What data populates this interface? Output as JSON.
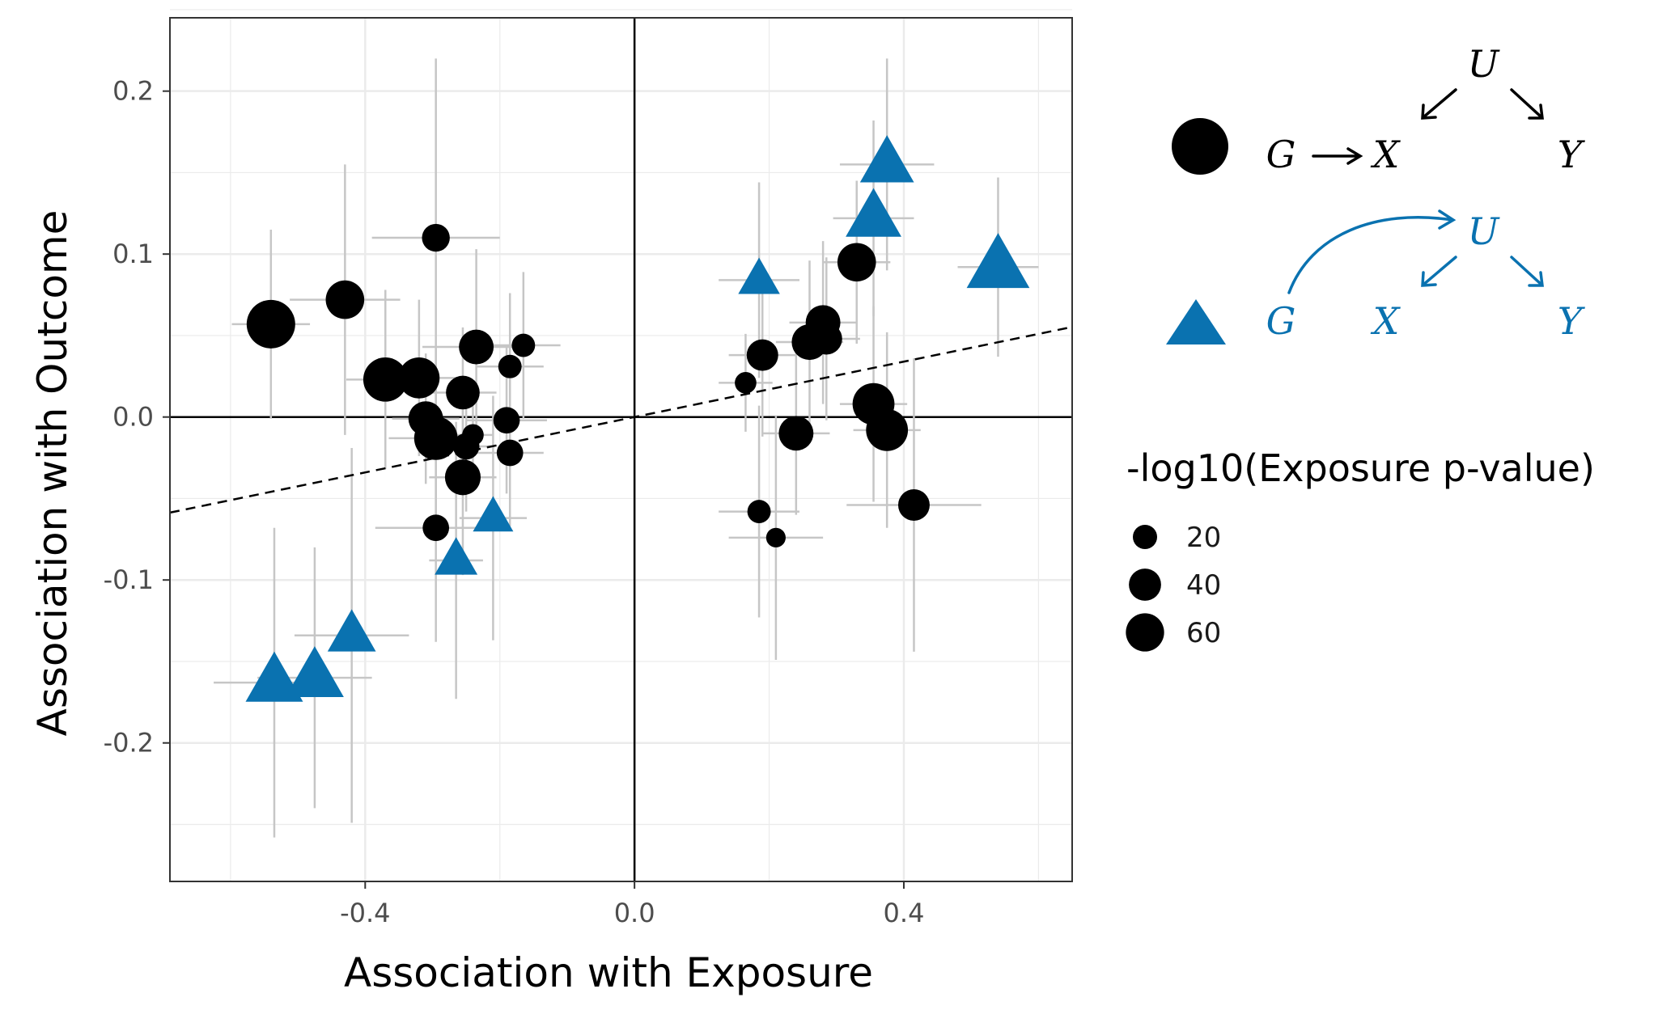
{
  "chart_data": {
    "type": "scatter",
    "title": "",
    "xlabel": "Association with Exposure",
    "ylabel": "Association with Outcome",
    "xlim": [
      -0.69,
      0.65
    ],
    "ylim": [
      -0.285,
      0.245
    ],
    "xticks": [
      -0.4,
      0.0,
      0.4
    ],
    "xtick_labels": [
      "-0.4",
      "0.0",
      "0.4"
    ],
    "yticks": [
      -0.2,
      -0.1,
      0.0,
      0.1,
      0.2
    ],
    "ytick_labels": [
      "-0.2",
      "-0.1",
      "0.0",
      "0.1",
      "0.2"
    ],
    "grid": true,
    "reference_line": {
      "style": "dashed",
      "intercept": 0.0,
      "slope": 0.085
    },
    "colors": {
      "circle": "#000000",
      "triangle": "#0a72b0",
      "errorbar": "#c6c6c6"
    },
    "size_legend": {
      "title": "-log10(Exposure p-value)",
      "labels": [
        "20",
        "40",
        "60"
      ],
      "values": [
        20,
        40,
        60
      ],
      "placement": "right"
    },
    "series": [
      {
        "marker": "circle",
        "points": [
          {
            "x": -0.54,
            "y": 0.057,
            "xerr": 0.058,
            "yerr": 0.058,
            "p": 62
          },
          {
            "x": -0.43,
            "y": 0.072,
            "xerr": 0.082,
            "yerr": 0.083,
            "p": 36
          },
          {
            "x": -0.37,
            "y": 0.023,
            "xerr": 0.058,
            "yerr": 0.055,
            "p": 50
          },
          {
            "x": -0.32,
            "y": 0.024,
            "xerr": 0.07,
            "yerr": 0.048,
            "p": 42
          },
          {
            "x": -0.31,
            "y": -0.001,
            "xerr": 0.05,
            "yerr": 0.04,
            "p": 28
          },
          {
            "x": -0.295,
            "y": -0.013,
            "xerr": 0.07,
            "yerr": 0.055,
            "p": 48
          },
          {
            "x": -0.295,
            "y": 0.11,
            "xerr": 0.095,
            "yerr": 0.11,
            "p": 16
          },
          {
            "x": -0.235,
            "y": 0.043,
            "xerr": 0.08,
            "yerr": 0.06,
            "p": 28
          },
          {
            "x": -0.255,
            "y": 0.015,
            "xerr": 0.05,
            "yerr": 0.04,
            "p": 26
          },
          {
            "x": -0.25,
            "y": -0.018,
            "xerr": 0.04,
            "yerr": 0.04,
            "p": 14
          },
          {
            "x": -0.24,
            "y": -0.011,
            "xerr": 0.03,
            "yerr": 0.03,
            "p": 8
          },
          {
            "x": -0.255,
            "y": -0.037,
            "xerr": 0.05,
            "yerr": 0.06,
            "p": 30
          },
          {
            "x": -0.19,
            "y": -0.002,
            "xerr": 0.06,
            "yerr": 0.045,
            "p": 14
          },
          {
            "x": -0.185,
            "y": 0.031,
            "xerr": 0.05,
            "yerr": 0.045,
            "p": 10
          },
          {
            "x": -0.185,
            "y": -0.022,
            "xerr": 0.05,
            "yerr": 0.045,
            "p": 14
          },
          {
            "x": -0.165,
            "y": 0.044,
            "xerr": 0.055,
            "yerr": 0.045,
            "p": 10
          },
          {
            "x": -0.295,
            "y": -0.068,
            "xerr": 0.09,
            "yerr": 0.07,
            "p": 14
          },
          {
            "x": 0.165,
            "y": 0.021,
            "xerr": 0.04,
            "yerr": 0.03,
            "p": 8
          },
          {
            "x": 0.19,
            "y": 0.038,
            "xerr": 0.05,
            "yerr": 0.05,
            "p": 22
          },
          {
            "x": 0.26,
            "y": 0.046,
            "xerr": 0.05,
            "yerr": 0.05,
            "p": 30
          },
          {
            "x": 0.28,
            "y": 0.058,
            "xerr": 0.05,
            "yerr": 0.05,
            "p": 28
          },
          {
            "x": 0.285,
            "y": 0.048,
            "xerr": 0.05,
            "yerr": 0.05,
            "p": 22
          },
          {
            "x": 0.33,
            "y": 0.095,
            "xerr": 0.05,
            "yerr": 0.05,
            "p": 36
          },
          {
            "x": 0.24,
            "y": -0.01,
            "xerr": 0.05,
            "yerr": 0.05,
            "p": 28
          },
          {
            "x": 0.355,
            "y": 0.008,
            "xerr": 0.05,
            "yerr": 0.06,
            "p": 44
          },
          {
            "x": 0.375,
            "y": -0.008,
            "xerr": 0.05,
            "yerr": 0.06,
            "p": 44
          },
          {
            "x": 0.185,
            "y": -0.058,
            "xerr": 0.06,
            "yerr": 0.065,
            "p": 10
          },
          {
            "x": 0.21,
            "y": -0.074,
            "xerr": 0.07,
            "yerr": 0.075,
            "p": 6
          },
          {
            "x": 0.415,
            "y": -0.054,
            "xerr": 0.1,
            "yerr": 0.09,
            "p": 22
          }
        ]
      },
      {
        "marker": "triangle",
        "points": [
          {
            "x": -0.535,
            "y": -0.163,
            "xerr": 0.09,
            "yerr": 0.095,
            "p": 60
          },
          {
            "x": -0.475,
            "y": -0.16,
            "xerr": 0.085,
            "yerr": 0.08,
            "p": 62
          },
          {
            "x": -0.42,
            "y": -0.134,
            "xerr": 0.085,
            "yerr": 0.115,
            "p": 40
          },
          {
            "x": -0.265,
            "y": -0.088,
            "xerr": 0.04,
            "yerr": 0.085,
            "p": 30
          },
          {
            "x": -0.21,
            "y": -0.062,
            "xerr": 0.05,
            "yerr": 0.075,
            "p": 26
          },
          {
            "x": 0.185,
            "y": 0.084,
            "xerr": 0.06,
            "yerr": 0.06,
            "p": 28
          },
          {
            "x": 0.355,
            "y": 0.122,
            "xerr": 0.06,
            "yerr": 0.06,
            "p": 56
          },
          {
            "x": 0.375,
            "y": 0.155,
            "xerr": 0.07,
            "yerr": 0.065,
            "p": 52
          },
          {
            "x": 0.54,
            "y": 0.092,
            "xerr": 0.06,
            "yerr": 0.055,
            "p": 74
          }
        ]
      }
    ]
  },
  "dag": {
    "confounded": {
      "U": "U",
      "G": "G",
      "X": "X",
      "Y": "Y"
    },
    "pleiotropic": {
      "U": "U",
      "G": "G",
      "X": "X",
      "Y": "Y"
    }
  }
}
